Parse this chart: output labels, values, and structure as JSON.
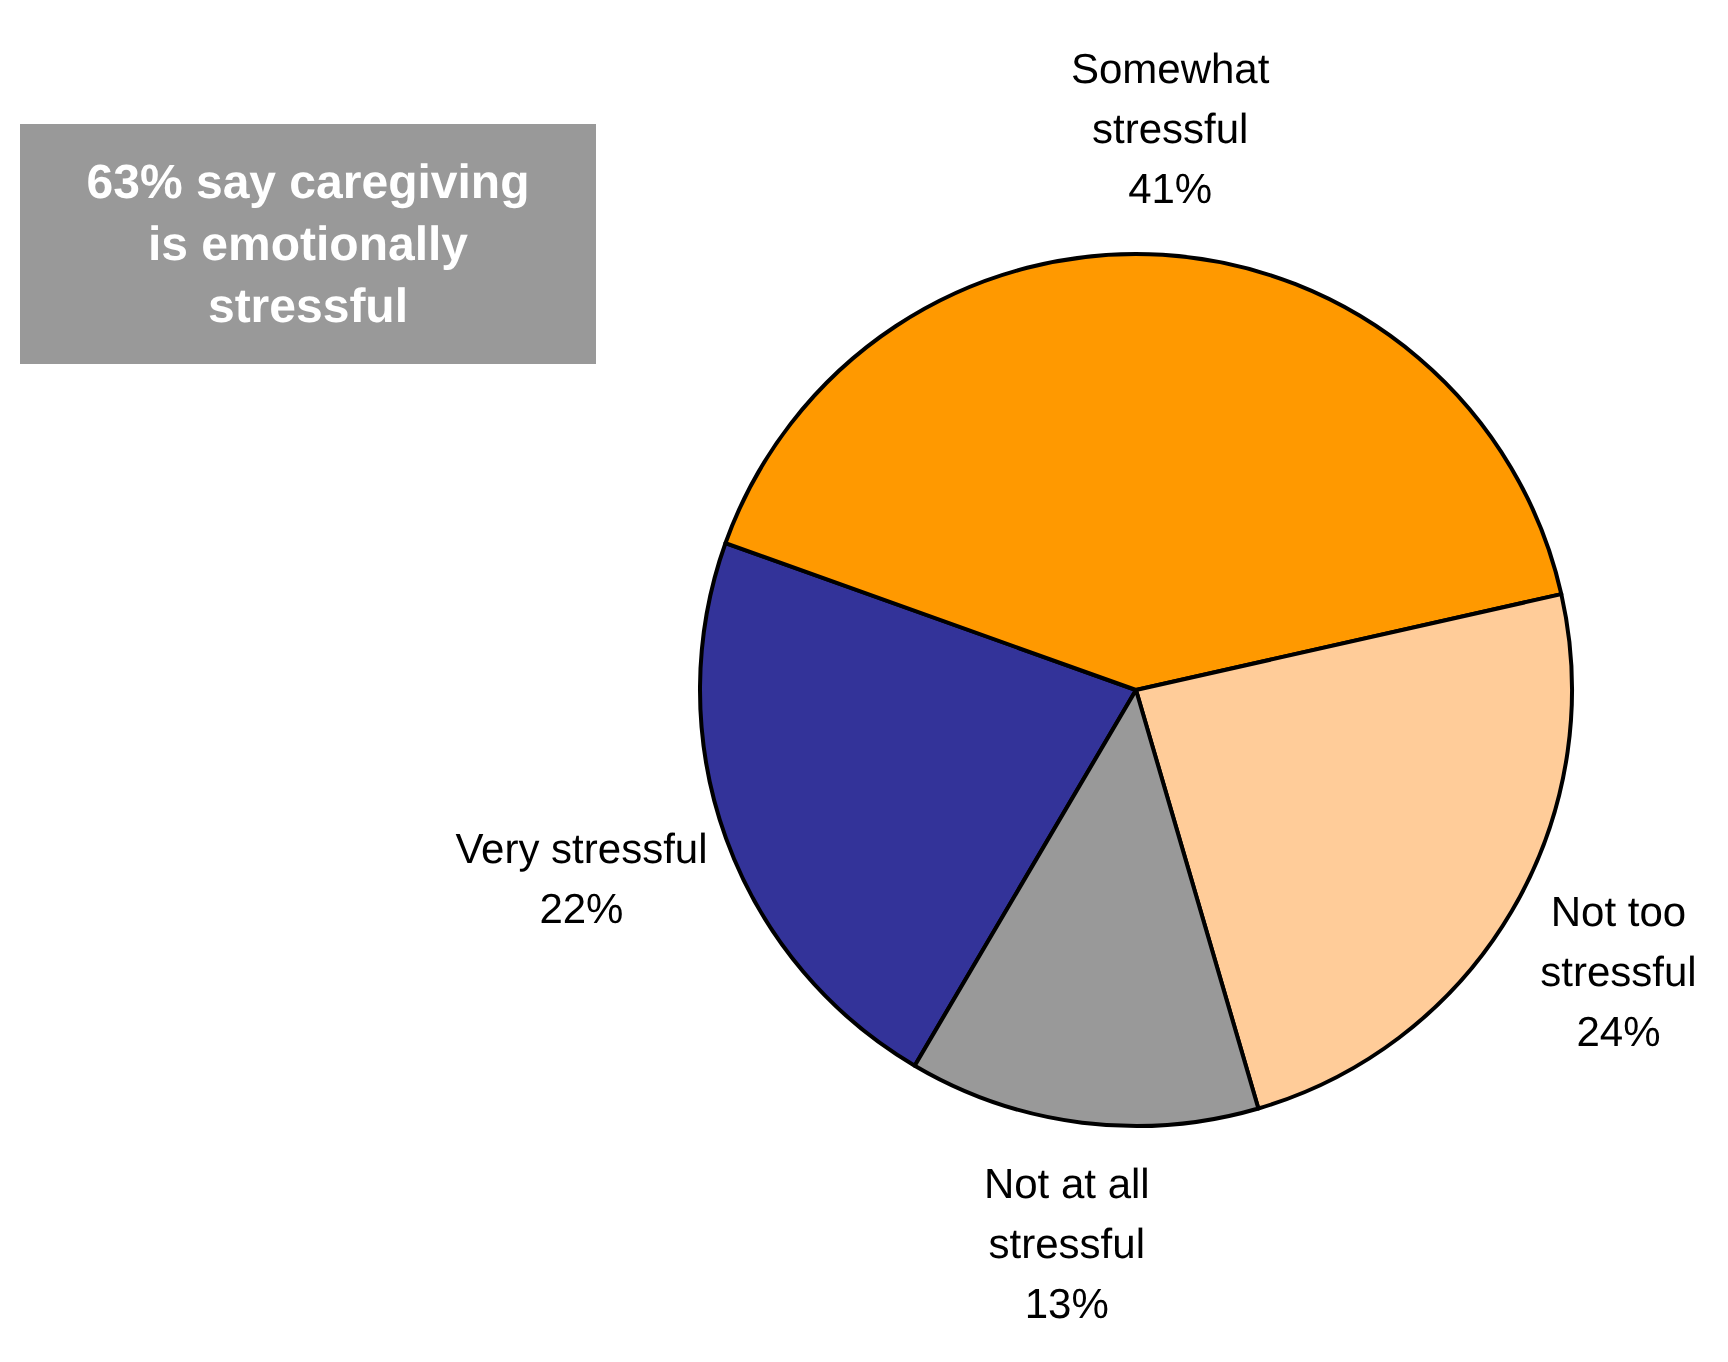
{
  "chart_data": {
    "type": "pie",
    "categories": [
      "Very stressful",
      "Somewhat stressful",
      "Not too stressful",
      "Not at all stressful"
    ],
    "values": [
      22,
      41,
      24,
      13
    ],
    "colors": [
      "#333399",
      "#ff9900",
      "#ffcc99",
      "#999999"
    ],
    "value_labels": [
      "22%",
      "41%",
      "24%",
      "13%"
    ],
    "annotations": [
      "63% say caregiving is emotionally stressful"
    ]
  }
}
